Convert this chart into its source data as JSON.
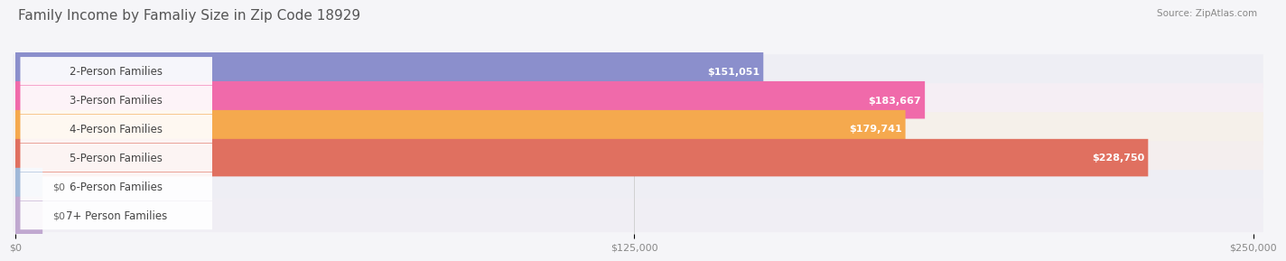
{
  "title": "Family Income by Famaliy Size in Zip Code 18929",
  "source": "Source: ZipAtlas.com",
  "categories": [
    "2-Person Families",
    "3-Person Families",
    "4-Person Families",
    "5-Person Families",
    "6-Person Families",
    "7+ Person Families"
  ],
  "values": [
    151051,
    183667,
    179741,
    228750,
    0,
    0
  ],
  "bar_colors": [
    "#8b8fcc",
    "#f06aaa",
    "#f5a94e",
    "#e07060",
    "#a0b8d8",
    "#c0a8d0"
  ],
  "bg_row_colors": [
    "#eeeef4",
    "#f5eef4",
    "#f5f0ea",
    "#f4eeee",
    "#eeeef4",
    "#f0eef4"
  ],
  "value_labels": [
    "$151,051",
    "$183,667",
    "$179,741",
    "$228,750",
    "$0",
    "$0"
  ],
  "xlim": [
    0,
    250000
  ],
  "xticks": [
    0,
    125000,
    250000
  ],
  "xtick_labels": [
    "$0",
    "$125,000",
    "$250,000"
  ],
  "background_color": "#f5f5f8",
  "title_fontsize": 11,
  "label_fontsize": 8.5,
  "value_fontsize": 8.0
}
